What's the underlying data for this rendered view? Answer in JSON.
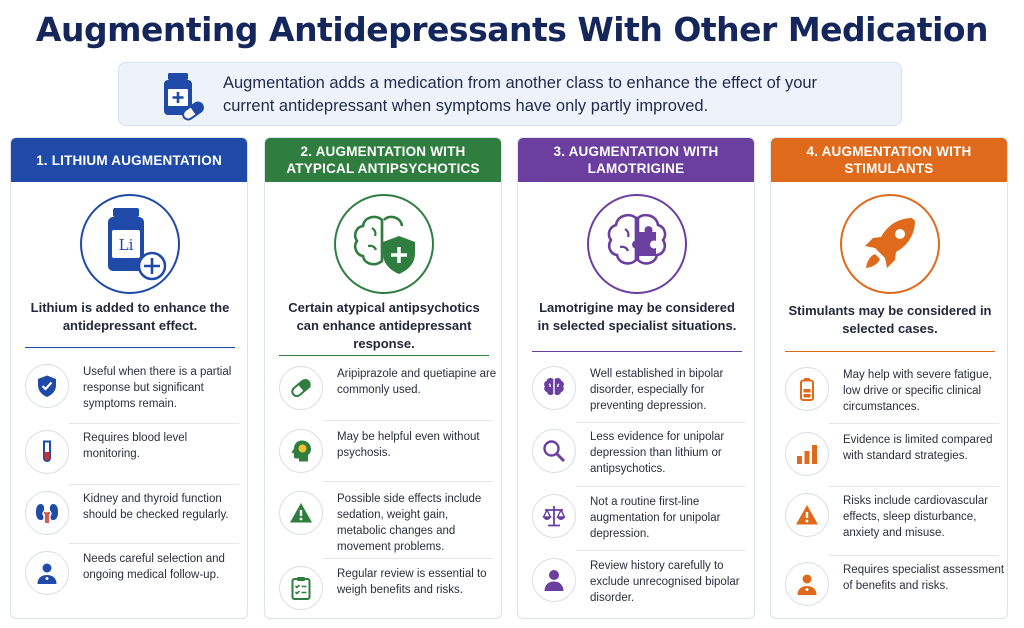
{
  "title": "Augmenting Antidepressants With Other Medication",
  "intro": {
    "icon": "medicine-bottle-icon",
    "text": "Augmentation adds a medication from another class to enhance the effect of your current antidepressant when symptoms have only partly improved."
  },
  "colors": {
    "title": "#14265c",
    "lithium": "#1f4aa8",
    "antipsychotics": "#2f7d3f",
    "lamotrigine": "#6b3fa0",
    "stimulants": "#e06a1b"
  },
  "cards": [
    {
      "header": "1. LITHIUM AUGMENTATION",
      "hero_icon": "lithium-bottle-icon",
      "hero_label": "Li",
      "summary": "Lithium is added to enhance the antidepressant effect.",
      "items": [
        {
          "icon": "shield-check-icon",
          "text": "Useful when there is a partial response but significant symptoms remain."
        },
        {
          "icon": "test-tube-icon",
          "text": "Requires blood level monitoring."
        },
        {
          "icon": "kidneys-icon",
          "text": "Kidney and thyroid function should be checked regularly."
        },
        {
          "icon": "doctor-icon",
          "text": "Needs careful selection and ongoing medical follow-up."
        }
      ]
    },
    {
      "header": "2. AUGMENTATION WITH ATYPICAL ANTIPSYCHOTICS",
      "hero_icon": "brain-shield-icon",
      "summary": "Certain atypical antipsychotics can enhance antidepressant response.",
      "items": [
        {
          "icon": "capsule-icon",
          "text": "Aripiprazole and quetiapine are commonly used."
        },
        {
          "icon": "head-brain-icon",
          "text": "May be helpful even without psychosis."
        },
        {
          "icon": "warning-icon",
          "text": "Possible side effects include sedation, weight gain, metabolic changes and movement problems."
        },
        {
          "icon": "clipboard-check-icon",
          "text": "Regular review is essential to weigh benefits and risks."
        }
      ]
    },
    {
      "header": "3. AUGMENTATION WITH LAMOTRIGINE",
      "hero_icon": "brain-puzzle-icon",
      "summary": "Lamotrigine may be considered in selected specialist situations.",
      "items": [
        {
          "icon": "brain-icon",
          "text": "Well established in bipolar disorder, especially for preventing depression."
        },
        {
          "icon": "magnifier-icon",
          "text": "Less evidence for unipolar depression than lithium or antipsychotics."
        },
        {
          "icon": "scales-icon",
          "text": "Not a routine first-line augmentation for unipolar depression."
        },
        {
          "icon": "person-icon",
          "text": "Review history carefully to exclude unrecognised bipolar disorder."
        }
      ]
    },
    {
      "header": "4. AUGMENTATION WITH STIMULANTS",
      "hero_icon": "rocket-icon",
      "summary": "Stimulants may be considered in selected cases.",
      "items": [
        {
          "icon": "low-battery-icon",
          "text": "May help with severe fatigue, low drive or specific clinical circumstances."
        },
        {
          "icon": "bar-chart-icon",
          "text": "Evidence is limited compared with standard strategies."
        },
        {
          "icon": "warning-icon",
          "text": "Risks include cardiovascular effects, sleep disturbance, anxiety and misuse."
        },
        {
          "icon": "doctor-icon",
          "text": "Requires specialist assessment of benefits and risks."
        }
      ]
    }
  ]
}
